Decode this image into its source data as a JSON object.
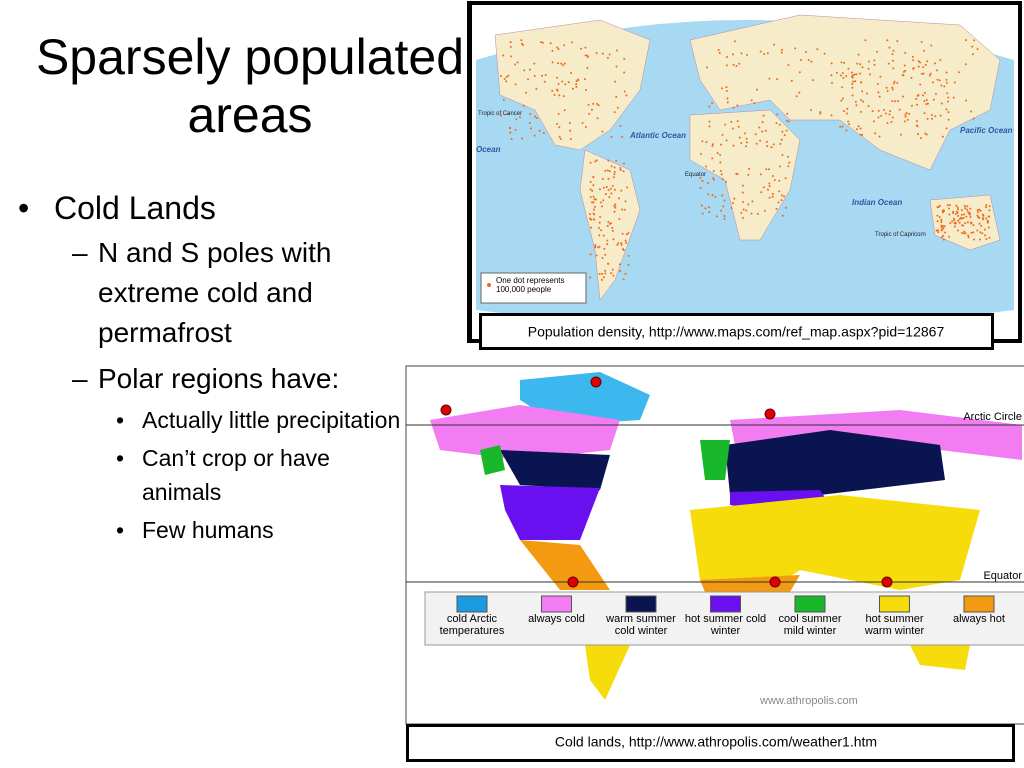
{
  "slide": {
    "title": "Sparsely populated areas",
    "bullets": [
      {
        "text": "Cold Lands",
        "children": [
          {
            "text": "N and S poles with extreme cold and permafrost",
            "children": []
          },
          {
            "text": "Polar regions have:",
            "children": [
              "Actually little precipitation",
              "Can’t crop or have animals",
              "Few humans"
            ]
          }
        ]
      }
    ],
    "population_map": {
      "caption": "Population density, http://www.maps.com/ref_map.aspx?pid=12867",
      "labels": {
        "atlantic": "Atlantic Ocean",
        "pacific_right": "Pacific Ocean",
        "pacific_left": "Ocean",
        "indian": "Indian Ocean",
        "equator": "Equator",
        "cancer": "Tropic of Cancer",
        "capricorn": "Tropic of Capricorn"
      },
      "key": "One dot represents 100,000 people"
    },
    "climate_map": {
      "caption": "Cold lands, http://www.athropolis.com/weather1.htm",
      "arctic_circle": "Arctic Circle",
      "equator": "Equator",
      "watermark": "www.athropolis.com",
      "legend": [
        {
          "label": "cold Arctic temperatures",
          "color": "#1a9be0"
        },
        {
          "label": "always cold",
          "color": "#f27cf2"
        },
        {
          "label": "warm summer cold winter",
          "color": "#0a1450"
        },
        {
          "label": "hot summer cold winter",
          "color": "#6a0ff0"
        },
        {
          "label": "cool summer mild winter",
          "color": "#18b82a"
        },
        {
          "label": "hot summer warm winter",
          "color": "#f5dc0a"
        },
        {
          "label": "always hot",
          "color": "#f39a10"
        }
      ]
    }
  }
}
